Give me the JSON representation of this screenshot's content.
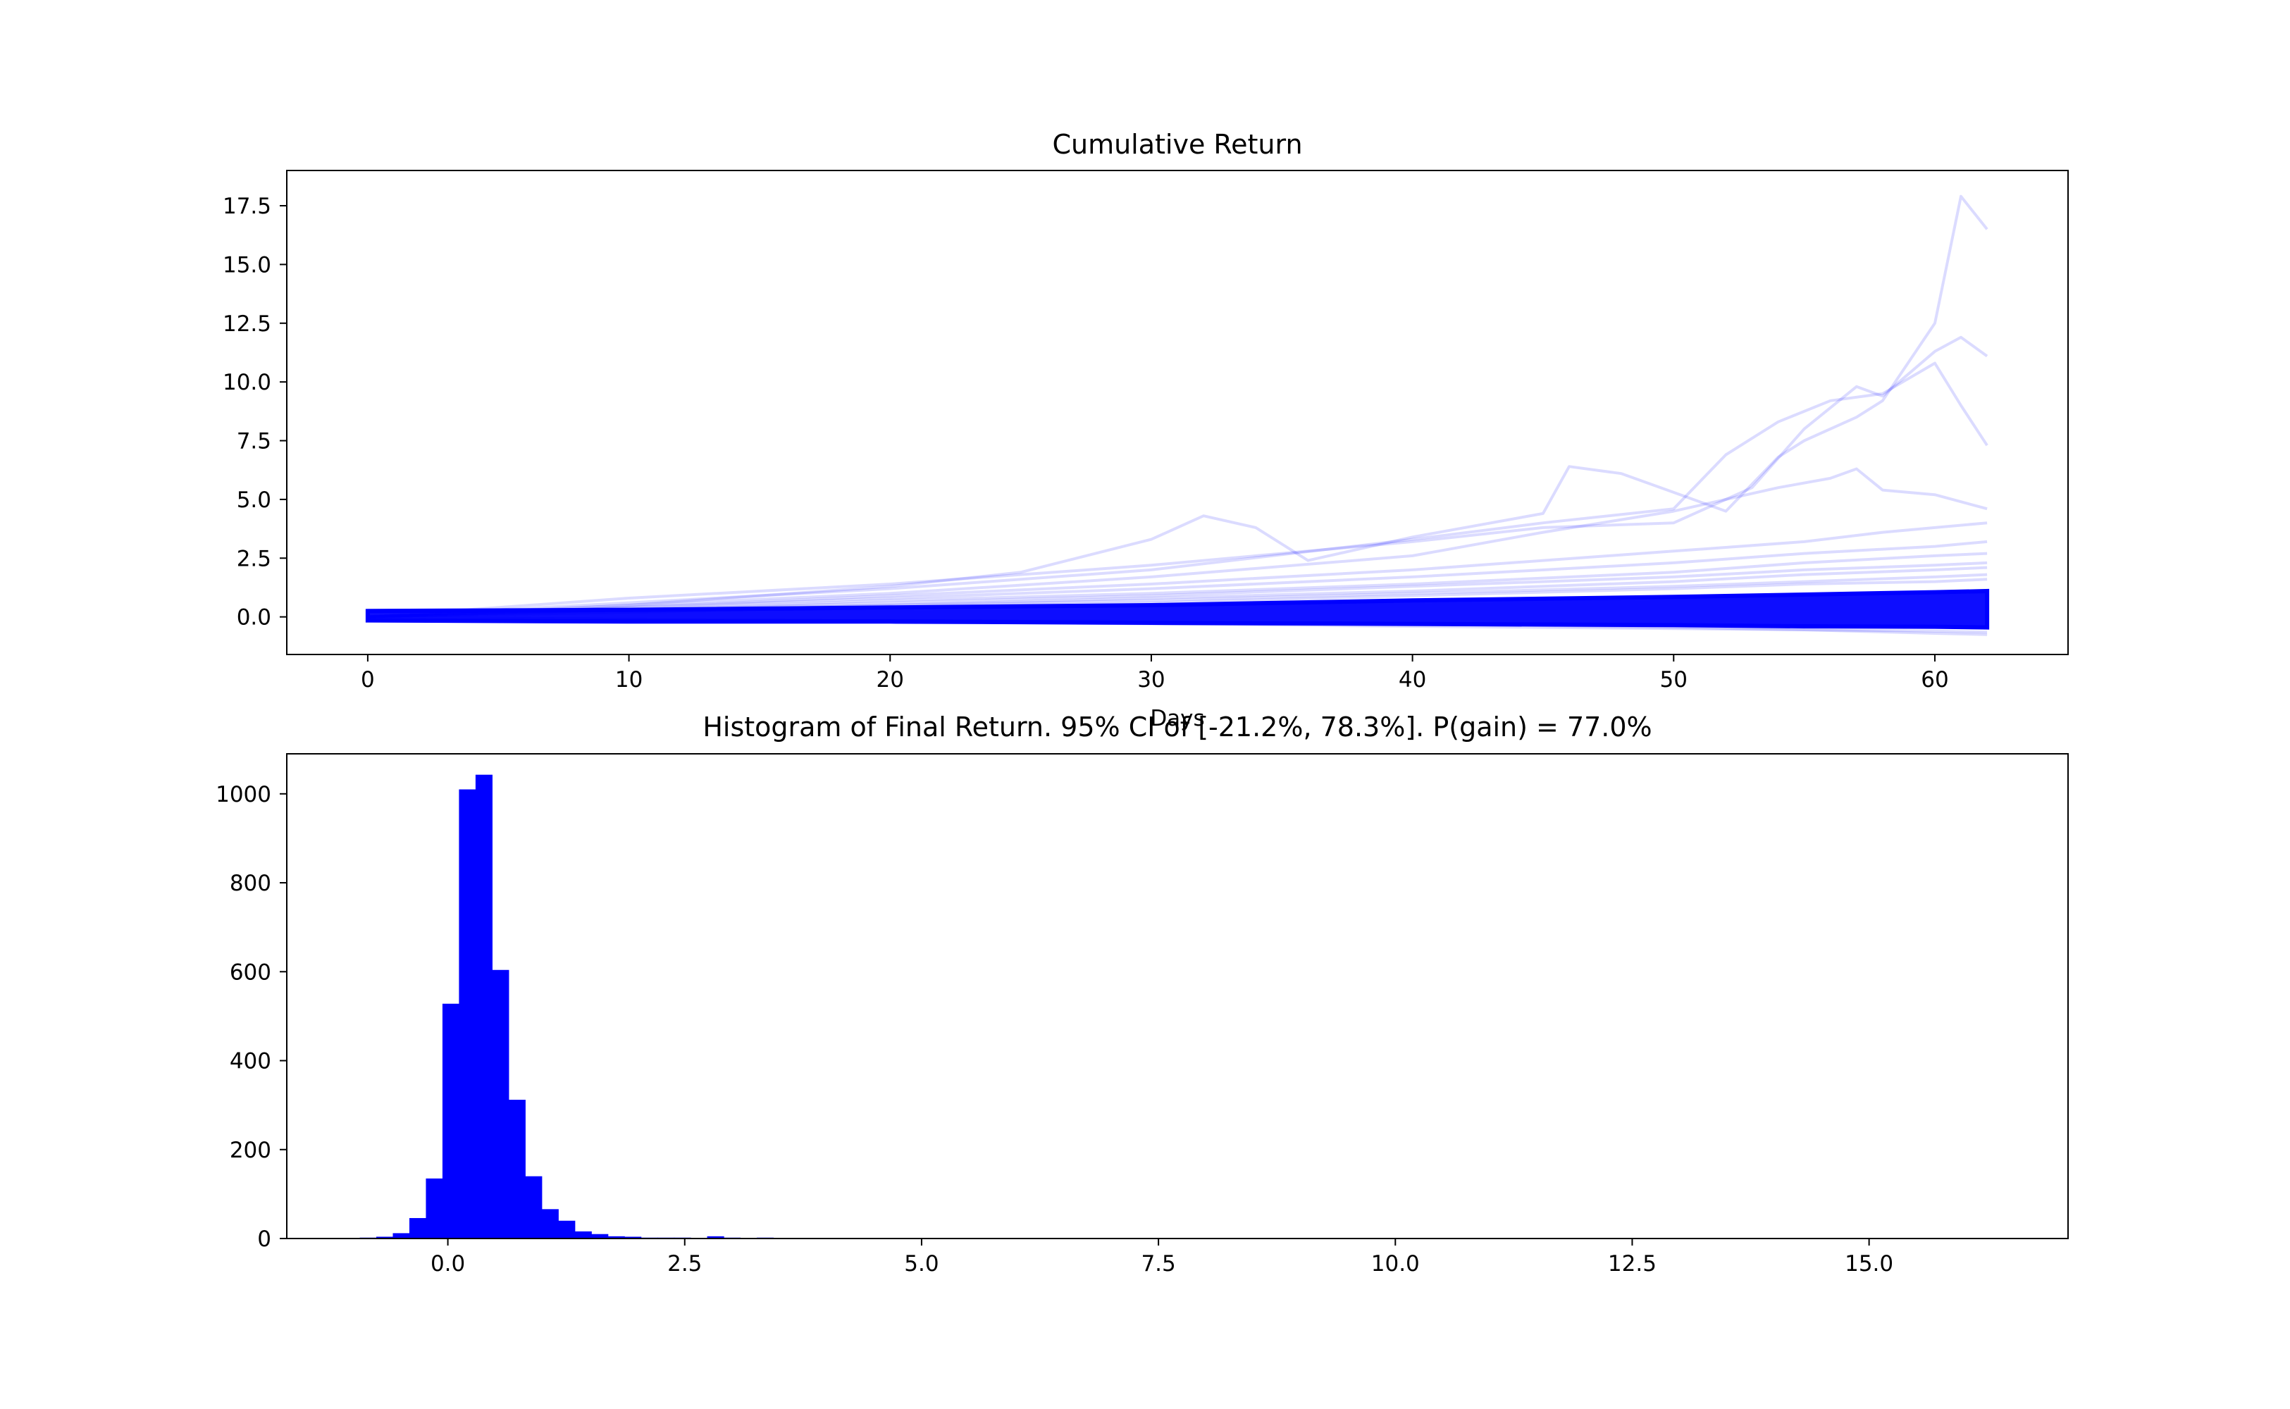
{
  "chart_data": [
    {
      "type": "line",
      "title": "Cumulative Return",
      "xlabel": "Days",
      "ylabel": "",
      "xlim": [
        -3.1,
        65.1
      ],
      "ylim": [
        -1.6,
        19.0
      ],
      "xticks": [
        0,
        10,
        20,
        30,
        40,
        50,
        60
      ],
      "yticks": [
        0.0,
        2.5,
        5.0,
        7.5,
        10.0,
        12.5,
        15.0,
        17.5
      ],
      "xtick_labels": [
        "0",
        "10",
        "20",
        "30",
        "40",
        "50",
        "60"
      ],
      "ytick_labels": [
        "0.0",
        "2.5",
        "5.0",
        "7.5",
        "10.0",
        "12.5",
        "15.0",
        "17.5"
      ],
      "grid": false,
      "color": "#0000ff",
      "series_alpha": 0.1,
      "n_days": 62,
      "envelope": {
        "days": [
          0,
          10,
          20,
          30,
          40,
          50,
          55,
          60,
          62
        ],
        "upper": [
          0.25,
          0.3,
          0.4,
          0.5,
          0.7,
          0.85,
          0.95,
          1.05,
          1.1
        ],
        "lower": [
          -0.15,
          -0.2,
          -0.2,
          -0.25,
          -0.3,
          -0.35,
          -0.4,
          -0.42,
          -0.45
        ]
      },
      "highlighted_paths": [
        {
          "x": [
            0,
            5,
            10,
            15,
            20,
            25,
            30,
            32,
            34,
            36,
            40,
            45,
            46,
            48,
            50,
            52,
            54,
            55,
            57,
            58,
            60,
            61,
            62
          ],
          "y": [
            0,
            0.2,
            0.5,
            0.9,
            1.3,
            1.9,
            3.3,
            4.3,
            3.8,
            2.4,
            3.4,
            4.4,
            6.4,
            6.1,
            5.3,
            4.5,
            6.8,
            7.5,
            8.5,
            9.2,
            12.5,
            17.9,
            16.5
          ]
        },
        {
          "x": [
            0,
            10,
            20,
            30,
            40,
            45,
            50,
            53,
            55,
            57,
            58,
            60,
            61,
            62
          ],
          "y": [
            0,
            0.8,
            1.4,
            2.2,
            3.2,
            3.8,
            4.0,
            5.5,
            8.0,
            9.8,
            9.4,
            11.3,
            11.9,
            11.1
          ]
        },
        {
          "x": [
            0,
            10,
            20,
            30,
            40,
            45,
            50,
            52,
            54,
            56,
            58,
            60,
            61,
            62
          ],
          "y": [
            0,
            0.6,
            1.2,
            2.0,
            3.3,
            4.0,
            4.6,
            6.9,
            8.3,
            9.2,
            9.5,
            10.8,
            9.0,
            7.3
          ]
        },
        {
          "x": [
            0,
            10,
            20,
            30,
            40,
            45,
            50,
            54,
            56,
            57,
            58,
            60,
            62
          ],
          "y": [
            0,
            0.5,
            1.0,
            1.7,
            2.6,
            3.6,
            4.5,
            5.5,
            5.9,
            6.3,
            5.4,
            5.2,
            4.6
          ]
        },
        {
          "x": [
            0,
            10,
            20,
            30,
            40,
            50,
            55,
            58,
            60,
            62
          ],
          "y": [
            0,
            0.4,
            0.9,
            1.4,
            2.0,
            2.8,
            3.2,
            3.6,
            3.8,
            4.0
          ]
        },
        {
          "x": [
            0,
            10,
            20,
            30,
            40,
            50,
            55,
            60,
            62
          ],
          "y": [
            0,
            0.4,
            0.8,
            1.2,
            1.7,
            2.3,
            2.7,
            3.0,
            3.2
          ]
        },
        {
          "x": [
            0,
            10,
            20,
            30,
            40,
            50,
            55,
            60,
            62
          ],
          "y": [
            0,
            0.3,
            0.7,
            1.0,
            1.4,
            1.9,
            2.3,
            2.6,
            2.7
          ]
        },
        {
          "x": [
            0,
            10,
            20,
            30,
            40,
            50,
            55,
            60,
            62
          ],
          "y": [
            0,
            0.3,
            0.6,
            0.9,
            1.3,
            1.7,
            2.0,
            2.2,
            2.3
          ]
        },
        {
          "x": [
            0,
            10,
            20,
            30,
            40,
            50,
            55,
            60,
            62
          ],
          "y": [
            0,
            0.3,
            0.5,
            0.8,
            1.1,
            1.5,
            1.8,
            2.0,
            2.1
          ]
        },
        {
          "x": [
            0,
            10,
            20,
            30,
            40,
            50,
            55,
            60,
            62
          ],
          "y": [
            0,
            0.2,
            0.5,
            0.7,
            1.0,
            1.3,
            1.5,
            1.7,
            1.8
          ]
        },
        {
          "x": [
            0,
            10,
            20,
            30,
            40,
            50,
            55,
            60,
            62
          ],
          "y": [
            0,
            0.2,
            0.4,
            0.6,
            0.9,
            1.2,
            1.4,
            1.5,
            1.6
          ]
        },
        {
          "x": [
            0,
            10,
            20,
            30,
            40,
            50,
            55,
            60,
            62
          ],
          "y": [
            0,
            -0.1,
            -0.2,
            -0.3,
            -0.4,
            -0.5,
            -0.55,
            -0.6,
            -0.65
          ]
        },
        {
          "x": [
            0,
            10,
            20,
            30,
            40,
            50,
            55,
            60,
            62
          ],
          "y": [
            0,
            -0.1,
            -0.15,
            -0.2,
            -0.3,
            -0.45,
            -0.55,
            -0.7,
            -0.75
          ]
        }
      ]
    },
    {
      "type": "bar",
      "subtype": "histogram",
      "title": "Histogram of Final Return. 95% CI of [-21.2%, 78.3%]. P(gain) = 77.0%",
      "xlabel": "",
      "ylabel": "",
      "xlim": [
        -1.7,
        17.1
      ],
      "ylim": [
        0,
        1090
      ],
      "xticks": [
        0.0,
        2.5,
        5.0,
        7.5,
        10.0,
        12.5,
        15.0
      ],
      "yticks": [
        0,
        200,
        400,
        600,
        800,
        1000
      ],
      "xtick_labels": [
        "0.0",
        "2.5",
        "5.0",
        "7.5",
        "10.0",
        "12.5",
        "15.0"
      ],
      "ytick_labels": [
        "0",
        "200",
        "400",
        "600",
        "800",
        "1000"
      ],
      "grid": false,
      "color": "#0000ff",
      "bin_start": -0.93,
      "bin_width": 0.1746,
      "counts": [
        2,
        4,
        12,
        46,
        135,
        528,
        1010,
        1043,
        604,
        312,
        140,
        66,
        40,
        16,
        10,
        5,
        4,
        2,
        2,
        2,
        1,
        5,
        2,
        1,
        2,
        1,
        0,
        1,
        0,
        0,
        0,
        0,
        0,
        0,
        0,
        0,
        0,
        0,
        0,
        0,
        0,
        0,
        0,
        0,
        0,
        0,
        0,
        0,
        0,
        0,
        0,
        0,
        0,
        0,
        0,
        0,
        0,
        0,
        0,
        0,
        0,
        0,
        0,
        0,
        0,
        0,
        0,
        0,
        0,
        0,
        0,
        0,
        0,
        0,
        0,
        0,
        0,
        0,
        0,
        0,
        0,
        0,
        0,
        0,
        0,
        0,
        0,
        0,
        0,
        0,
        0,
        0,
        0,
        0,
        0,
        0,
        0,
        0,
        0,
        1
      ]
    }
  ]
}
